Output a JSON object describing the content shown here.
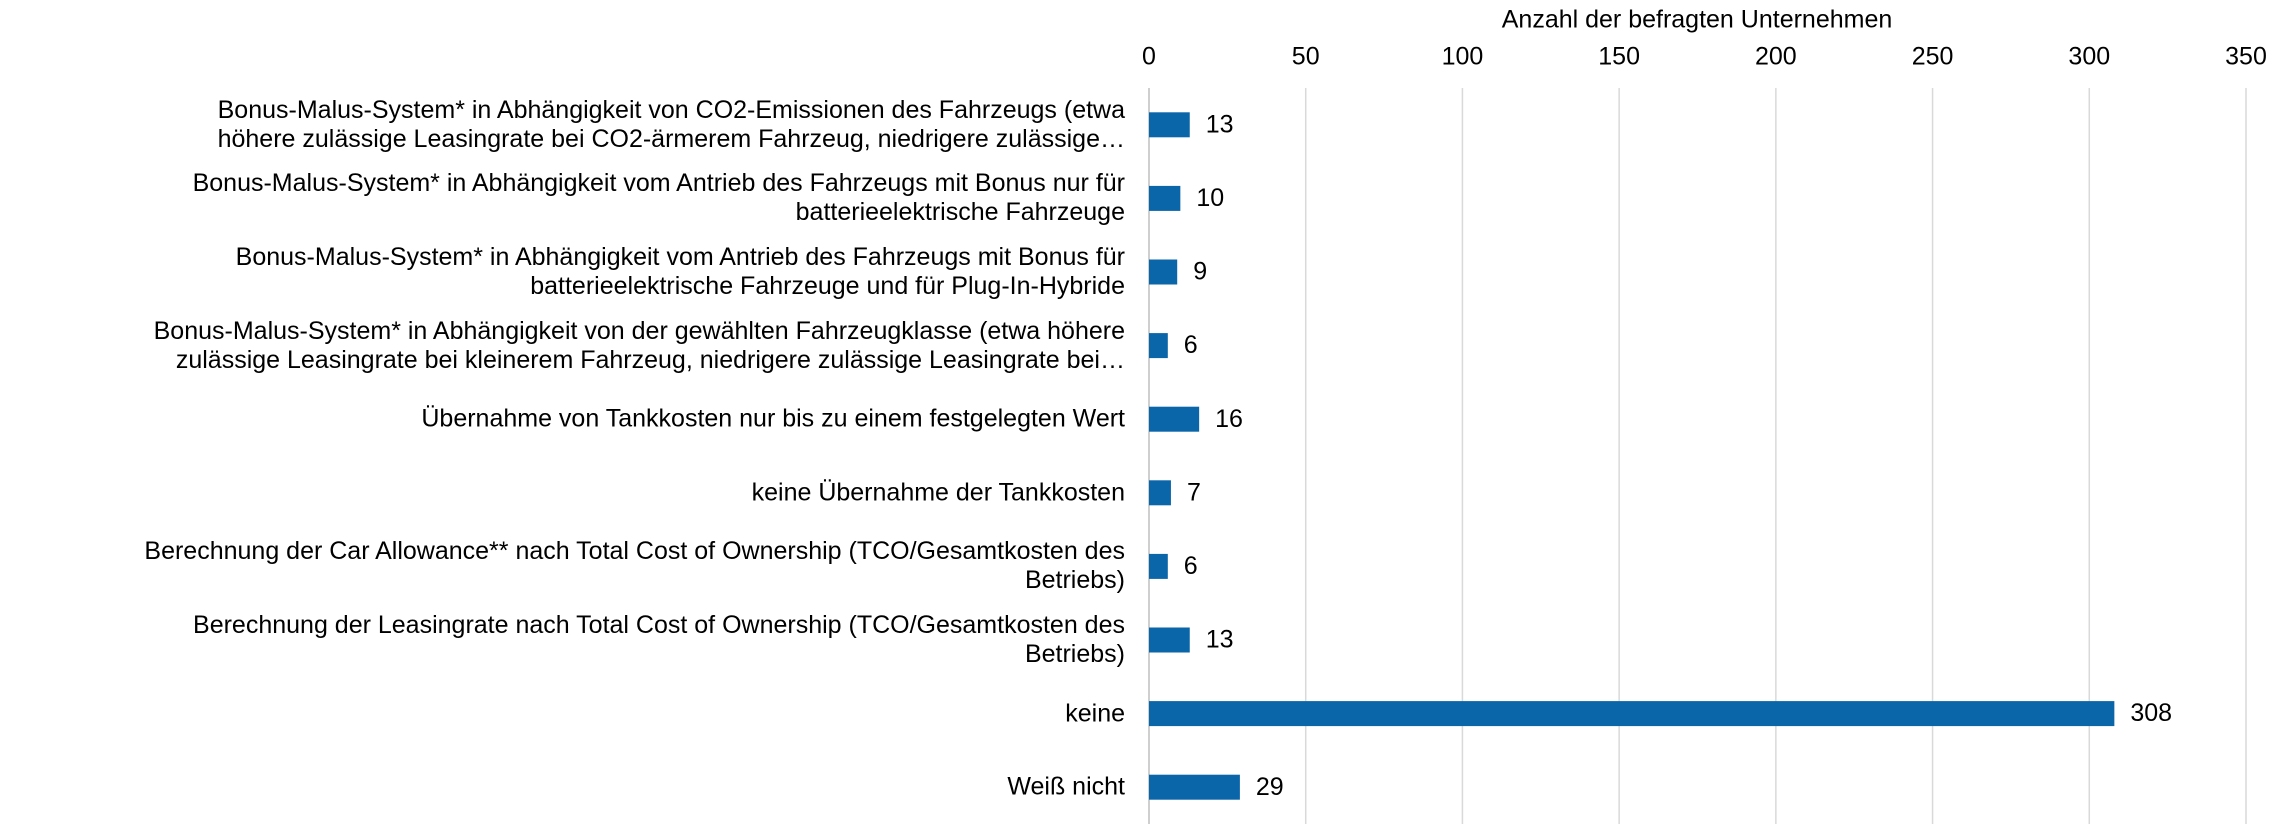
{
  "chart_data": {
    "type": "barh",
    "x_label": "Anzahl der befragten Unternehmen",
    "categories": [
      "Bonus-Malus-System* in Abhängigkeit von CO2-Emissionen des Fahrzeugs (etwa\nhöhere zulässige Leasingrate bei CO2-ärmerem Fahrzeug, niedrigere zulässige…",
      "Bonus-Malus-System* in Abhängigkeit vom Antrieb des Fahrzeugs mit Bonus nur für\nbatterieelektrische Fahrzeuge",
      "Bonus-Malus-System* in Abhängigkeit vom Antrieb des Fahrzeugs mit Bonus für\nbatterieelektrische Fahrzeuge und für Plug-In-Hybride",
      "Bonus-Malus-System* in Abhängigkeit von der gewählten Fahrzeugklasse (etwa höhere\nzulässige Leasingrate bei kleinerem Fahrzeug, niedrigere zulässige Leasingrate bei…",
      "Übernahme von Tankkosten nur bis zu einem festgelegten Wert",
      "keine Übernahme der Tankkosten",
      "Berechnung der Car Allowance** nach Total Cost of Ownership (TCO/Gesamtkosten des\nBetriebs)",
      "Berechnung der Leasingrate nach Total Cost of Ownership (TCO/Gesamtkosten des\nBetriebs)",
      "keine",
      "Weiß nicht"
    ],
    "values": [
      13,
      10,
      9,
      6,
      16,
      7,
      6,
      13,
      308,
      29
    ],
    "color": "#0a66a8",
    "xlim": [
      0,
      350
    ],
    "xticks": [
      0,
      50,
      100,
      150,
      200,
      250,
      300,
      350
    ],
    "grid": true
  }
}
